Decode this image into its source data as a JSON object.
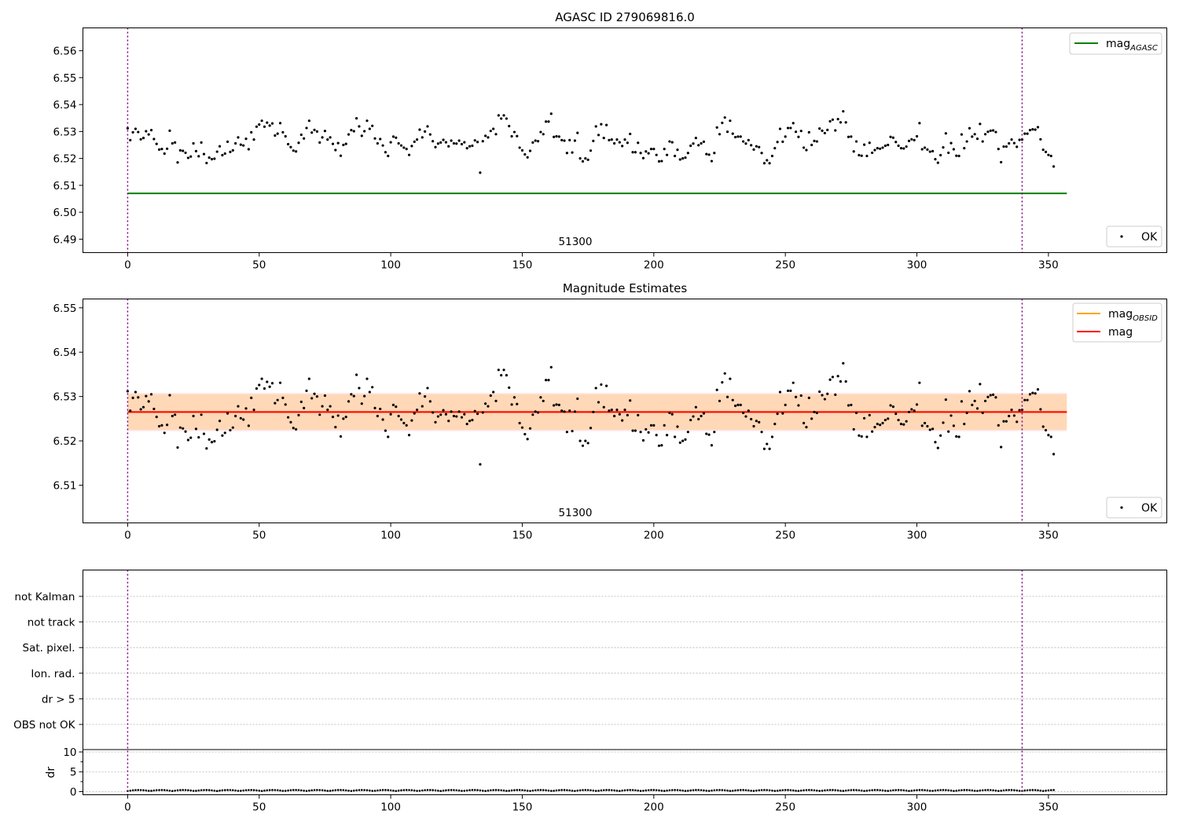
{
  "chart_data": [
    {
      "type": "scatter",
      "title": "AGASC ID 279069816.0",
      "xlabel": "",
      "ylabel": "",
      "xlim": [
        -17,
        395
      ],
      "ylim": [
        6.485,
        6.5685
      ],
      "x_ticks": [
        0,
        50,
        100,
        150,
        200,
        250,
        300,
        350
      ],
      "y_ticks": [
        6.49,
        6.5,
        6.51,
        6.52,
        6.53,
        6.54,
        6.55,
        6.56
      ],
      "y_tick_labels": [
        "6.49",
        "6.50",
        "6.51",
        "6.52",
        "6.53",
        "6.54",
        "6.55",
        "6.56"
      ],
      "annotation": "51300",
      "vlines": [
        0,
        340
      ],
      "hline": {
        "label": "mag_AGASC",
        "y": 6.507,
        "x_range": [
          0,
          357
        ],
        "color": "#008000"
      },
      "legend_upper": [
        {
          "label": "mag",
          "subscript": "AGASC",
          "color": "#008000",
          "kind": "line"
        }
      ],
      "legend_lower": [
        {
          "label": "OK",
          "color": "#000000",
          "kind": "marker"
        }
      ],
      "series": [
        {
          "name": "OK",
          "color": "#000000"
        }
      ]
    },
    {
      "type": "scatter",
      "title": "Magnitude Estimates",
      "xlabel": "",
      "ylabel": "",
      "xlim": [
        -17,
        395
      ],
      "ylim": [
        6.5015,
        6.552
      ],
      "x_ticks": [
        0,
        50,
        100,
        150,
        200,
        250,
        300,
        350
      ],
      "y_ticks": [
        6.51,
        6.52,
        6.53,
        6.54,
        6.55
      ],
      "y_tick_labels": [
        "6.51",
        "6.52",
        "6.53",
        "6.54",
        "6.55"
      ],
      "annotation": "51300",
      "vlines": [
        0,
        340
      ],
      "mag_obsid": {
        "label": "mag_OBSID",
        "y": 6.5265,
        "band": [
          6.5225,
          6.5305
        ],
        "color": "#ffa500"
      },
      "mag": {
        "label": "mag",
        "y": 6.5265,
        "band": [
          6.5222,
          6.5308
        ],
        "color": "#ff0000"
      },
      "legend_upper": [
        {
          "label": "mag",
          "subscript": "OBSID",
          "color": "#ffa500",
          "kind": "line"
        },
        {
          "label": "mag",
          "subscript": "",
          "color": "#ff0000",
          "kind": "line"
        }
      ],
      "legend_lower": [
        {
          "label": "OK",
          "color": "#000000",
          "kind": "marker"
        }
      ],
      "series": [
        {
          "name": "OK",
          "color": "#000000"
        }
      ]
    },
    {
      "type": "scatter",
      "title": "",
      "flag_labels": [
        "not Kalman",
        "not track",
        "Sat. pixel.",
        "Ion. rad.",
        "dr > 5",
        "OBS not OK"
      ],
      "dr_panel": {
        "ylabel": "dr",
        "y_ticks": [
          0,
          5,
          10
        ],
        "ylim": [
          -0.8,
          10.6
        ],
        "xlim": [
          -17,
          395
        ],
        "x_ticks": [
          0,
          50,
          100,
          150,
          200,
          250,
          300,
          350
        ],
        "vlines": [
          0,
          340
        ]
      }
    }
  ],
  "magnitude_samples": {
    "x_start": 0,
    "x_step": 1,
    "mag": [
      6.5312,
      6.5268,
      6.5297,
      6.531,
      6.5298,
      6.5271,
      6.5276,
      6.5301,
      6.5289,
      6.5305,
      6.5272,
      6.5254,
      6.5233,
      6.5235,
      6.5218,
      6.5236,
      6.5303,
      6.5256,
      6.5259,
      6.5185,
      6.523,
      6.5228,
      6.5221,
      6.5202,
      6.5207,
      6.5256,
      6.5227,
      6.5208,
      6.5259,
      6.5216,
      6.5183,
      6.5203,
      6.5197,
      6.5199,
      6.5225,
      6.5245,
      6.5212,
      6.5218,
      6.5262,
      6.5224,
      6.523,
      6.5256,
      6.5278,
      6.5251,
      6.5248,
      6.5273,
      6.5234,
      6.5297,
      6.527,
      6.5318,
      6.5326,
      6.534,
      6.5318,
      6.5333,
      6.5322,
      6.533,
      6.5285,
      6.5292,
      6.5331,
      6.5297,
      6.5282,
      6.5253,
      6.5242,
      6.5229,
      6.5226,
      6.5258,
      6.5288,
      6.5274,
      6.5313,
      6.534,
      6.5296,
      6.5306,
      6.53,
      6.5259,
      6.5278,
      6.5302,
      6.527,
      6.5278,
      6.5254,
      6.5231,
      6.5257,
      6.521,
      6.525,
      6.5254,
      6.5289,
      6.5305,
      6.5301,
      6.5349,
      6.5319,
      6.5284,
      6.5301,
      6.534,
      6.531,
      6.5321,
      6.5274,
      6.5256,
      6.5272,
      6.5248,
      6.5223,
      6.5209,
      6.526,
      6.5281,
      6.5277,
      6.5256,
      6.5248,
      6.524,
      6.5235,
      6.5213,
      6.5246,
      6.5262,
      6.527,
      6.5307,
      6.5278,
      6.53,
      6.5319,
      6.5289,
      6.5264,
      6.5242,
      6.5255,
      6.5259,
      6.5269,
      6.526,
      6.5245,
      6.5266,
      6.5256,
      6.5255,
      6.5266,
      6.5253,
      6.526,
      6.5238,
      6.5245,
      6.5247,
      6.5267,
      6.5261,
      6.5147,
      6.5264,
      6.5284,
      6.5278,
      6.5302,
      6.531,
      6.529,
      6.536,
      6.5348,
      6.536,
      6.5348,
      6.532,
      6.5282,
      6.5298,
      6.5283,
      6.524,
      6.523,
      6.5215,
      6.5204,
      6.5228,
      6.5259,
      6.5266,
      6.5264,
      6.5298,
      6.529,
      6.5337,
      6.5337,
      6.5366,
      6.528,
      6.5282,
      6.5281,
      6.5268,
      6.5266,
      6.522,
      6.5268,
      6.5222,
      6.5266,
      6.5295,
      6.52,
      6.5189,
      6.52,
      6.5195,
      6.5229,
      6.5265,
      6.5319,
      6.5287,
      6.5327,
      6.5276,
      6.5324,
      6.5268,
      6.527,
      6.5256,
      6.527,
      6.526,
      6.5246,
      6.527,
      6.5258,
      6.5291,
      6.5223,
      6.5223,
      6.5258,
      6.522,
      6.5201,
      6.5226,
      6.5219,
      6.5235,
      6.5235,
      6.5213,
      6.5189,
      6.519,
      6.5235,
      6.5213,
      6.5263,
      6.526,
      6.5209,
      6.5232,
      6.5196,
      6.52,
      6.5203,
      6.522,
      6.5247,
      6.5255,
      6.5276,
      6.5249,
      6.5256,
      6.5262,
      6.5216,
      6.5214,
      6.519,
      6.522,
      6.5315,
      6.529,
      6.5332,
      6.5352,
      6.5299,
      6.534,
      6.5292,
      6.5279,
      6.5281,
      6.5281,
      6.5263,
      6.5255,
      6.5268,
      6.5249,
      6.5233,
      6.5245,
      6.5242,
      6.522,
      6.5182,
      6.5193,
      6.5182,
      6.5209,
      6.5238,
      6.5261,
      6.531,
      6.5262,
      6.5281,
      6.5313,
      6.5313,
      6.5331,
      6.5299,
      6.528,
      6.5302,
      6.524,
      6.5231,
      6.5297,
      6.525,
      6.5265,
      6.5263,
      6.5311,
      6.5303,
      6.5294,
      6.5306,
      6.5338,
      6.5344,
      6.5304,
      6.5346,
      6.5334,
      6.5375,
      6.5334,
      6.528,
      6.5281,
      6.5226,
      6.5263,
      6.5212,
      6.521,
      6.5251,
      6.5209,
      6.5258,
      6.5221,
      6.5231,
      6.5238,
      6.5236,
      6.524,
      6.5247,
      6.525,
      6.528,
      6.5277,
      6.5261,
      6.5247,
      6.5238,
      6.5237,
      6.5244,
      6.5265,
      6.5271,
      6.5268,
      6.5282,
      6.5331,
      6.5234,
      6.524,
      6.5233,
      6.5225,
      6.5227,
      6.5197,
      6.5184,
      6.5212,
      6.5241,
      6.5293,
      6.5221,
      6.5257,
      6.5234,
      6.521,
      6.5209,
      6.5289,
      6.5238,
      6.5263,
      6.5312,
      6.5281,
      6.529,
      6.5273,
      6.5328,
      6.5263,
      6.529,
      6.5299,
      6.5303,
      6.5304,
      6.5298,
      6.5235,
      6.5186,
      6.5244,
      6.5244,
      6.5256,
      6.527,
      6.5257,
      6.5243,
      6.5269,
      6.527,
      6.5292,
      6.5292,
      6.5305,
      6.5308,
      6.5307,
      6.5316,
      6.5271,
      6.5232,
      6.5224,
      6.5213,
      6.5209,
      6.517
    ]
  }
}
